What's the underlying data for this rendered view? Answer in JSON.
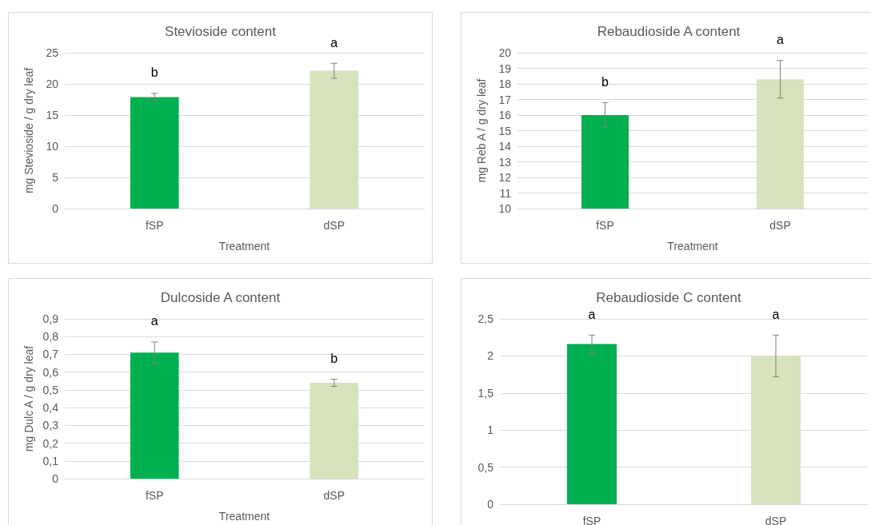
{
  "chart_data": [
    {
      "type": "bar",
      "title": "Stevioside content",
      "xlabel": "Treatment",
      "ylabel": "mg Stevioside / g dry leaf",
      "categories": [
        "fSP",
        "dSP"
      ],
      "values": [
        17.9,
        22.1
      ],
      "errors": [
        0.6,
        1.2
      ],
      "colors": [
        "#00b050",
        "#d6e3bc"
      ],
      "ylim": [
        0,
        25
      ],
      "yticks": [
        0,
        5,
        10,
        15,
        20,
        25
      ],
      "grid": "y",
      "annotations": [
        {
          "text": "b",
          "x": "fSP",
          "y": 18.5
        },
        {
          "text": "a",
          "x": "dSP",
          "y": 23.3
        }
      ]
    },
    {
      "type": "bar",
      "title": "Rebaudioside A content",
      "xlabel": "Treatment",
      "ylabel": "mg Reb A / g dry leaf",
      "categories": [
        "fSP",
        "dSP"
      ],
      "values": [
        16.0,
        18.3
      ],
      "errors": [
        0.8,
        1.2
      ],
      "colors": [
        "#00b050",
        "#d6e3bc"
      ],
      "ylim": [
        10,
        20
      ],
      "yticks": [
        10,
        11,
        12,
        13,
        14,
        15,
        16,
        17,
        18,
        19,
        20
      ],
      "grid": "y",
      "annotations": [
        {
          "text": "b",
          "x": "fSP",
          "y": 16.8
        },
        {
          "text": "a",
          "x": "dSP",
          "y": 19.5
        }
      ]
    },
    {
      "type": "bar",
      "title": "Dulcoside A content",
      "xlabel": "Treatment",
      "ylabel": "mg Dulc A / g dry leaf",
      "categories": [
        "fSP",
        "dSP"
      ],
      "values": [
        0.71,
        0.54
      ],
      "errors": [
        0.06,
        0.02
      ],
      "colors": [
        "#00b050",
        "#d6e3bc"
      ],
      "ylim": [
        0,
        0.9
      ],
      "yticks": [
        0,
        {
          "value": 0.1,
          "label": "0,1"
        },
        {
          "value": 0.2,
          "label": "0,2"
        },
        {
          "value": 0.3,
          "label": "0,3"
        },
        {
          "value": 0.4,
          "label": "0,4"
        },
        {
          "value": 0.5,
          "label": "0,5"
        },
        {
          "value": 0.6,
          "label": "0,6"
        },
        {
          "value": 0.7,
          "label": "0,7"
        },
        {
          "value": 0.8,
          "label": "0,8"
        },
        {
          "value": 0.9,
          "label": "0,9"
        }
      ],
      "grid": "y",
      "annotations": [
        {
          "text": "a",
          "x": "fSP",
          "y": 0.77
        },
        {
          "text": "b",
          "x": "dSP",
          "y": 0.56
        }
      ]
    },
    {
      "type": "bar",
      "title": "Rebaudioside C content",
      "categories": [
        "fSP",
        "dSP"
      ],
      "values": [
        2.16,
        2.0
      ],
      "errors": [
        0.12,
        0.28
      ],
      "colors": [
        "#00b050",
        "#d6e3bc"
      ],
      "ylim": [
        0,
        2.5
      ],
      "yticks": [
        0,
        {
          "value": 0.5,
          "label": "0,5"
        },
        1,
        {
          "value": 1.5,
          "label": "1,5"
        },
        2,
        {
          "value": 2.5,
          "label": "2,5"
        }
      ],
      "grid": "y",
      "annotations": [
        {
          "text": "a",
          "x": "fSP",
          "y": 2.28
        },
        {
          "text": "a",
          "x": "dSP",
          "y": 2.28
        }
      ]
    }
  ]
}
